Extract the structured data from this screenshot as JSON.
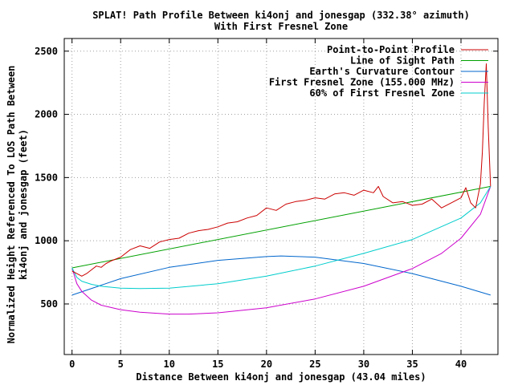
{
  "chart_data": {
    "type": "line",
    "title": "SPLAT! Path Profile Between ki4onj and jonesgap (332.38° azimuth)",
    "subtitle": "With First Fresnel Zone",
    "xlabel": "Distance Between ki4onj and jonesgap (43.04 miles)",
    "ylabel_line1": "Normalized Height Referenced To LOS Path Between",
    "ylabel_line2": "ki4onj and jonesgap (feet)",
    "xlim": [
      -0.8,
      43.8
    ],
    "ylim": [
      100,
      2600
    ],
    "xticks": [
      0,
      5,
      10,
      15,
      20,
      25,
      30,
      35,
      40
    ],
    "yticks": [
      500,
      1000,
      1500,
      2000,
      2500
    ],
    "grid": true,
    "legend_position": "top-right",
    "series": [
      {
        "name": "Point-to-Point Profile",
        "color": "#cc0000",
        "x": [
          0,
          0.5,
          1,
          1.5,
          2,
          2.5,
          3,
          3.5,
          4,
          5,
          6,
          7,
          8,
          9,
          10,
          11,
          12,
          13,
          14,
          15,
          16,
          17,
          18,
          19,
          20,
          21,
          22,
          23,
          24,
          25,
          26,
          27,
          28,
          29,
          30,
          31,
          31.5,
          32,
          33,
          34,
          35,
          36,
          37,
          38,
          39,
          40,
          40.5,
          41,
          41.5,
          42,
          42.2,
          42.4,
          42.6,
          42.8,
          43.04
        ],
        "y": [
          760,
          740,
          720,
          740,
          770,
          800,
          790,
          820,
          840,
          870,
          930,
          960,
          940,
          990,
          1010,
          1020,
          1060,
          1080,
          1090,
          1110,
          1140,
          1150,
          1180,
          1200,
          1260,
          1240,
          1290,
          1310,
          1320,
          1340,
          1330,
          1370,
          1380,
          1360,
          1400,
          1380,
          1430,
          1350,
          1300,
          1310,
          1280,
          1290,
          1330,
          1260,
          1300,
          1340,
          1420,
          1300,
          1260,
          1450,
          1700,
          2100,
          2400,
          1900,
          1430
        ]
      },
      {
        "name": "Line of Sight Path",
        "color": "#00a000",
        "x": [
          0,
          43.04
        ],
        "y": [
          785,
          1430
        ]
      },
      {
        "name": "Earth's Curvature Contour",
        "color": "#0066cc",
        "x": [
          0,
          5,
          10,
          15,
          20,
          21.5,
          25,
          30,
          35,
          40,
          43.04
        ],
        "y": [
          570,
          700,
          790,
          845,
          875,
          880,
          870,
          820,
          740,
          640,
          570
        ]
      },
      {
        "name": "First Fresnel Zone (155.000 MHz)",
        "color": "#cc00cc",
        "x": [
          0,
          0.5,
          1,
          2,
          3,
          5,
          7,
          10,
          12,
          15,
          20,
          25,
          30,
          35,
          38,
          40,
          42,
          43.04
        ],
        "y": [
          785,
          660,
          600,
          530,
          490,
          455,
          435,
          420,
          420,
          430,
          470,
          540,
          640,
          780,
          900,
          1020,
          1210,
          1430
        ]
      },
      {
        "name": "60% of First Fresnel Zone",
        "color": "#00cccc",
        "x": [
          0,
          0.5,
          1,
          2,
          3,
          5,
          7,
          10,
          15,
          20,
          25,
          30,
          35,
          40,
          42,
          43.04
        ],
        "y": [
          785,
          710,
          680,
          655,
          640,
          625,
          622,
          625,
          660,
          720,
          800,
          900,
          1010,
          1180,
          1300,
          1430
        ]
      }
    ]
  }
}
